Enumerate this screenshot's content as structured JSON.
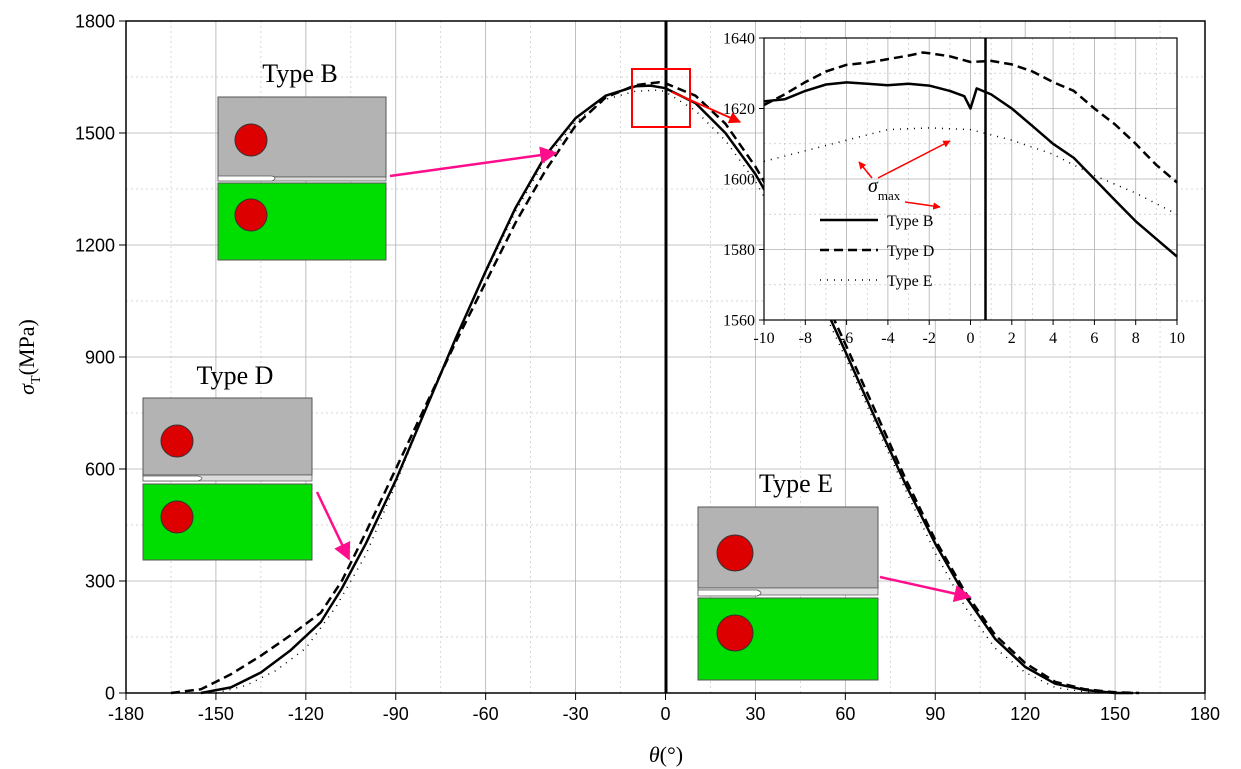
{
  "chart_data": [
    {
      "type": "line",
      "xlabel_symbol": "θ",
      "xlabel_unit": "(°)",
      "ylabel_symbol": "σ",
      "ylabel_sub": "T",
      "ylabel_unit": "(MPa)",
      "xlim": [
        -180,
        180
      ],
      "ylim": [
        0,
        1800
      ],
      "x_ticks": [
        -180,
        -150,
        -120,
        -90,
        -60,
        -30,
        0,
        30,
        60,
        90,
        120,
        150,
        180
      ],
      "y_ticks": [
        0,
        300,
        600,
        900,
        1200,
        1500,
        1800
      ],
      "grid": true,
      "series": [
        {
          "name": "Type B",
          "style": "solid",
          "x": [
            -155,
            -145,
            -135,
            -125,
            -115,
            -108,
            -100,
            -90,
            -80,
            -70,
            -60,
            -50,
            -40,
            -30,
            -20,
            -10,
            -5,
            0,
            10,
            20,
            30,
            40,
            50,
            60,
            70,
            80,
            90,
            100,
            110,
            120,
            130,
            140,
            150,
            156
          ],
          "y": [
            0,
            15,
            55,
            115,
            190,
            280,
            400,
            570,
            760,
            950,
            1130,
            1300,
            1440,
            1540,
            1600,
            1625,
            1627,
            1620,
            1580,
            1500,
            1390,
            1250,
            1090,
            915,
            735,
            560,
            400,
            260,
            145,
            70,
            25,
            8,
            0,
            0
          ]
        },
        {
          "name": "Type D",
          "style": "dashed",
          "x": [
            -165,
            -155,
            -145,
            -135,
            -125,
            -115,
            -108,
            -100,
            -90,
            -80,
            -70,
            -60,
            -50,
            -40,
            -30,
            -20,
            -10,
            -2,
            0,
            10,
            20,
            30,
            40,
            50,
            60,
            70,
            80,
            90,
            100,
            110,
            120,
            130,
            140,
            150,
            158
          ],
          "y": [
            0,
            10,
            50,
            100,
            155,
            215,
            300,
            430,
            600,
            770,
            940,
            1100,
            1260,
            1400,
            1520,
            1595,
            1628,
            1636,
            1633,
            1600,
            1525,
            1410,
            1270,
            1110,
            935,
            755,
            575,
            410,
            270,
            155,
            80,
            30,
            10,
            2,
            0
          ]
        },
        {
          "name": "Type E",
          "style": "dotted",
          "x": [
            -150,
            -140,
            -130,
            -120,
            -110,
            -100,
            -90,
            -80,
            -70,
            -60,
            -50,
            -40,
            -30,
            -20,
            -10,
            -2,
            0,
            10,
            20,
            30,
            40,
            50,
            60,
            70,
            80,
            90,
            100,
            110,
            120,
            130,
            140,
            150
          ],
          "y": [
            0,
            20,
            60,
            120,
            230,
            370,
            560,
            760,
            950,
            1125,
            1290,
            1430,
            1530,
            1590,
            1612,
            1615,
            1610,
            1560,
            1480,
            1370,
            1230,
            1070,
            900,
            720,
            545,
            375,
            230,
            120,
            55,
            15,
            3,
            0
          ]
        }
      ]
    },
    {
      "type": "line",
      "role": "inset",
      "xlim": [
        -10,
        10
      ],
      "ylim": [
        1560,
        1640
      ],
      "x_ticks": [
        -10,
        -8,
        -6,
        -4,
        -2,
        0,
        2,
        4,
        6,
        8,
        10
      ],
      "y_ticks": [
        1560,
        1580,
        1600,
        1620,
        1640
      ],
      "grid": true,
      "annotation_symbol": "σ",
      "annotation_sub": "max",
      "legend_position": "bottom-left",
      "series": [
        {
          "name": "Type B",
          "style": "solid",
          "x": [
            -10,
            -9,
            -8,
            -7,
            -6,
            -5,
            -4,
            -3,
            -2,
            -1,
            -0.3,
            0,
            0.3,
            1,
            2,
            3,
            4,
            5,
            6,
            7,
            8,
            9,
            10
          ],
          "y": [
            1622,
            1622.6,
            1625,
            1626.8,
            1627.4,
            1627,
            1626.6,
            1627,
            1626.5,
            1625,
            1623.5,
            1620,
            1625.7,
            1624,
            1620,
            1615,
            1610,
            1606,
            1600,
            1594,
            1588,
            1583,
            1578
          ]
        },
        {
          "name": "Type D",
          "style": "dashed",
          "x": [
            -10,
            -9,
            -8,
            -7,
            -6,
            -5,
            -4,
            -3,
            -2.3,
            -2,
            -1,
            0,
            1,
            2,
            3,
            4,
            5,
            6,
            7,
            8,
            9,
            10
          ],
          "y": [
            1621,
            1624,
            1627.5,
            1630.5,
            1632.4,
            1633,
            1634,
            1635,
            1635.9,
            1635.7,
            1634.8,
            1633.2,
            1633.5,
            1632.5,
            1630.5,
            1627.5,
            1625,
            1620,
            1615.5,
            1610,
            1604,
            1599
          ]
        },
        {
          "name": "Type E",
          "style": "dotted",
          "x": [
            -10,
            -8,
            -6,
            -4,
            -2,
            0,
            2,
            4,
            6,
            8,
            10
          ],
          "y": [
            1605,
            1608,
            1611,
            1614,
            1614.5,
            1614,
            1611,
            1607,
            1601,
            1596,
            1590
          ]
        }
      ]
    }
  ],
  "callouts": [
    {
      "label": "Type B"
    },
    {
      "label": "Type D"
    },
    {
      "label": "Type E"
    }
  ],
  "colors": {
    "upper_plate": "#b3b3b3",
    "lower_plate": "#00dd00",
    "bolt": "#dd0000",
    "arrow": "#ff0d8c",
    "zoom_box": "#ff0000"
  }
}
